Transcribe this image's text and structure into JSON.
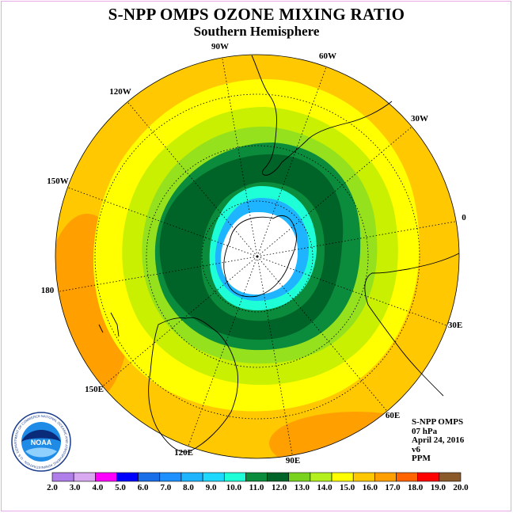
{
  "title": "S-NPP OMPS OZONE MIXING RATIO",
  "subtitle": "Southern Hemisphere",
  "longitude_labels": [
    "90W",
    "60W",
    "30W",
    "0",
    "30E",
    "60E",
    "90E",
    "120E",
    "150E",
    "180",
    "150W",
    "120W"
  ],
  "info": {
    "instrument": "S-NPP OMPS",
    "level": "07 hPa",
    "date": "April 24, 2016",
    "version": "v6",
    "units": "PPM"
  },
  "logo": {
    "text": "NOAA",
    "ring_text": "NATIONAL OCEANIC AND ATMOSPHERIC ADMINISTRATION · U.S. DEPARTMENT OF COMMERCE"
  },
  "colorbar": {
    "ticks": [
      "2.0",
      "3.0",
      "4.0",
      "5.0",
      "6.0",
      "7.0",
      "8.0",
      "9.0",
      "10.0",
      "11.0",
      "12.0",
      "13.0",
      "14.0",
      "15.0",
      "16.0",
      "17.0",
      "18.0",
      "19.0",
      "20.0"
    ],
    "colors": [
      "#b07ee8",
      "#d8a8f0",
      "#ff00ff",
      "#0000ff",
      "#1a6ee8",
      "#1e90ff",
      "#1eb4ff",
      "#1ed8ff",
      "#1effd8",
      "#0a8c3c",
      "#006428",
      "#78d21e",
      "#b4f01e",
      "#ffff00",
      "#ffc800",
      "#ffa000",
      "#ff6400",
      "#ff0000",
      "#8b5a2b"
    ]
  },
  "colors": {
    "ocean_bg": "#ffc800",
    "orange": "#ffa000",
    "yellow": "#ffff00",
    "yellowgreen": "#c8f000",
    "lightgreen": "#96e11e",
    "green": "#0a8c3c",
    "darkgreen": "#006428",
    "cyan": "#1effd8",
    "lightblue": "#1eb4ff",
    "blue": "#1e90ff",
    "hole": "#ffffff"
  }
}
